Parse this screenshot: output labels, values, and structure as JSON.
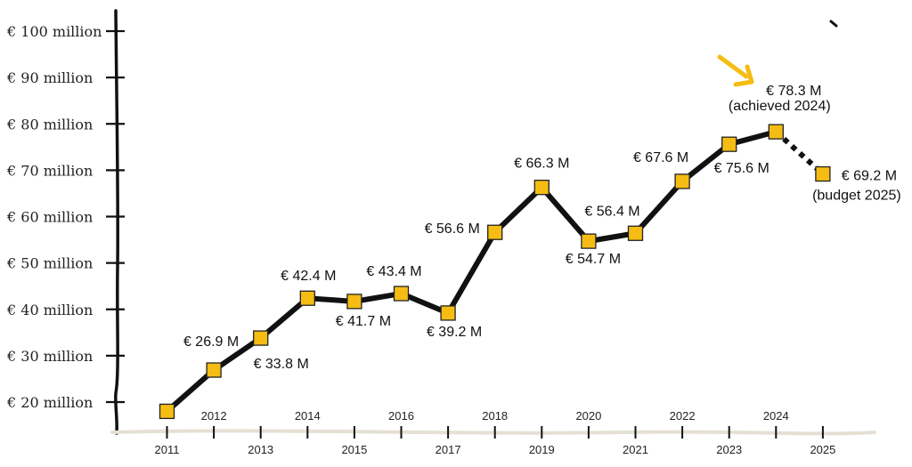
{
  "chart_data": {
    "type": "line",
    "title": "",
    "xlabel": "",
    "ylabel": "",
    "ylim": [
      15,
      100
    ],
    "grid": false,
    "y_ticks": [
      {
        "value": 100,
        "label": "€ 100 million"
      },
      {
        "value": 90,
        "label": "€ 90 million"
      },
      {
        "value": 80,
        "label": "€ 80 million"
      },
      {
        "value": 70,
        "label": "€ 70 million"
      },
      {
        "value": 60,
        "label": "€ 60 million"
      },
      {
        "value": 50,
        "label": "€ 50 million"
      },
      {
        "value": 40,
        "label": "€ 40 million"
      },
      {
        "value": 30,
        "label": "€ 30 million"
      },
      {
        "value": 20,
        "label": "€ 20 million"
      }
    ],
    "x": [
      2011,
      2012,
      2013,
      2014,
      2015,
      2016,
      2017,
      2018,
      2019,
      2020,
      2021,
      2022,
      2023,
      2024,
      2025
    ],
    "x_tick_labels": [
      "2011",
      "2012",
      "2013",
      "2014",
      "2015",
      "2016",
      "2017",
      "2018",
      "2019",
      "2020",
      "2021",
      "2022",
      "2023",
      "2024",
      "2025"
    ],
    "series": [
      {
        "values": [
          18.0,
          26.9,
          33.8,
          42.4,
          41.7,
          43.4,
          39.2,
          56.6,
          66.3,
          54.7,
          56.4,
          67.6,
          75.6,
          78.3,
          69.2
        ],
        "labels": [
          "",
          "€ 26.9 M",
          "€ 33.8 M",
          "€ 42.4 M",
          "€ 41.7 M",
          "€ 43.4 M",
          "€ 39.2 M",
          "€ 56.6 M",
          "€ 66.3 M",
          "€ 54.7 M",
          "€ 56.4 M",
          "€ 67.6 M",
          "€ 75.6 M",
          "€ 78.3 M",
          "€ 69.2 M"
        ],
        "dashed_last_segment": true
      }
    ],
    "annotations": [
      {
        "text": "(achieved 2024)",
        "x": 2024
      },
      {
        "text": "(budget 2025)",
        "x": 2025
      }
    ],
    "colors": {
      "line": "#111111",
      "marker_fill": "#f5bd13",
      "marker_stroke": "#222222",
      "arrow": "#f5bd13",
      "axis": "#111111",
      "baseline": "#e5e0d4"
    }
  }
}
